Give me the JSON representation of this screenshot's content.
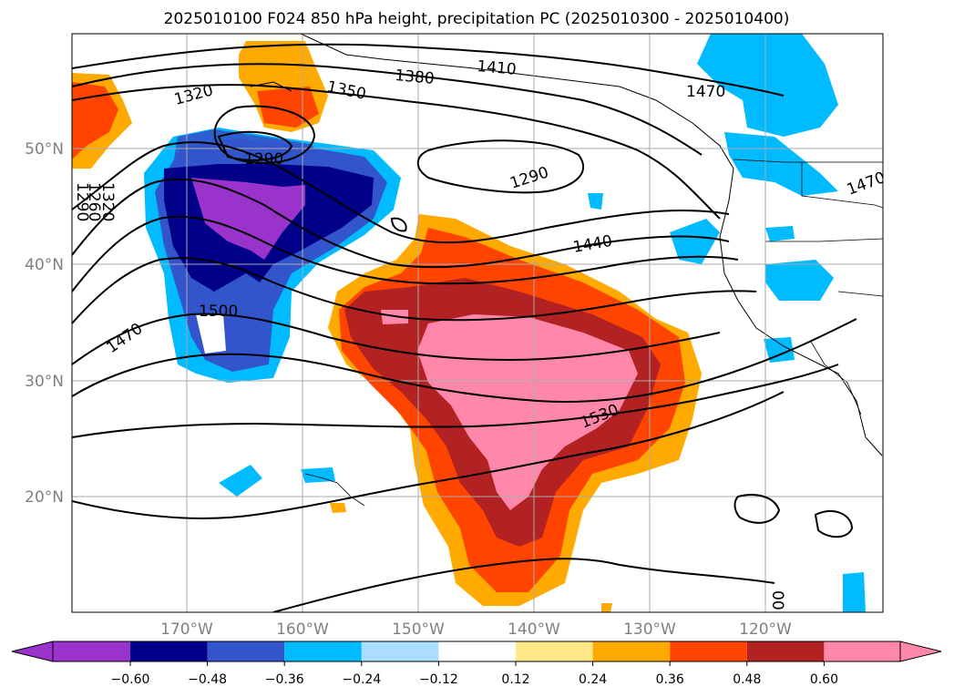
{
  "title": "2025010100 F024 850 hPa height, precipitation PC (2025010300 - 2025010400)",
  "map": {
    "lat_labels": [
      "50°N",
      "40°N",
      "30°N",
      "20°N"
    ],
    "lon_labels": [
      "170°W",
      "160°W",
      "150°W",
      "140°W",
      "130°W",
      "120°W"
    ],
    "gridlines": true
  },
  "contour_labels": [
    "1320",
    "1350",
    "1380",
    "1410",
    "1470",
    "1290",
    "1290",
    "1290",
    "1320",
    "1260",
    "1440",
    "1500",
    "1470",
    "1530",
    "1470",
    "00"
  ],
  "colorbar": {
    "colors": [
      "#9933cc",
      "#000088",
      "#3355cc",
      "#00bbff",
      "#aaddff",
      "#ffffff",
      "#ffe888",
      "#ffaa00",
      "#ff4400",
      "#b22222",
      "#ff88aa"
    ],
    "tick_labels": [
      "−0.60",
      "−0.48",
      "−0.36",
      "−0.24",
      "−0.12",
      "0.12",
      "0.24",
      "0.36",
      "0.48",
      "0.60"
    ],
    "extend": "both"
  }
}
